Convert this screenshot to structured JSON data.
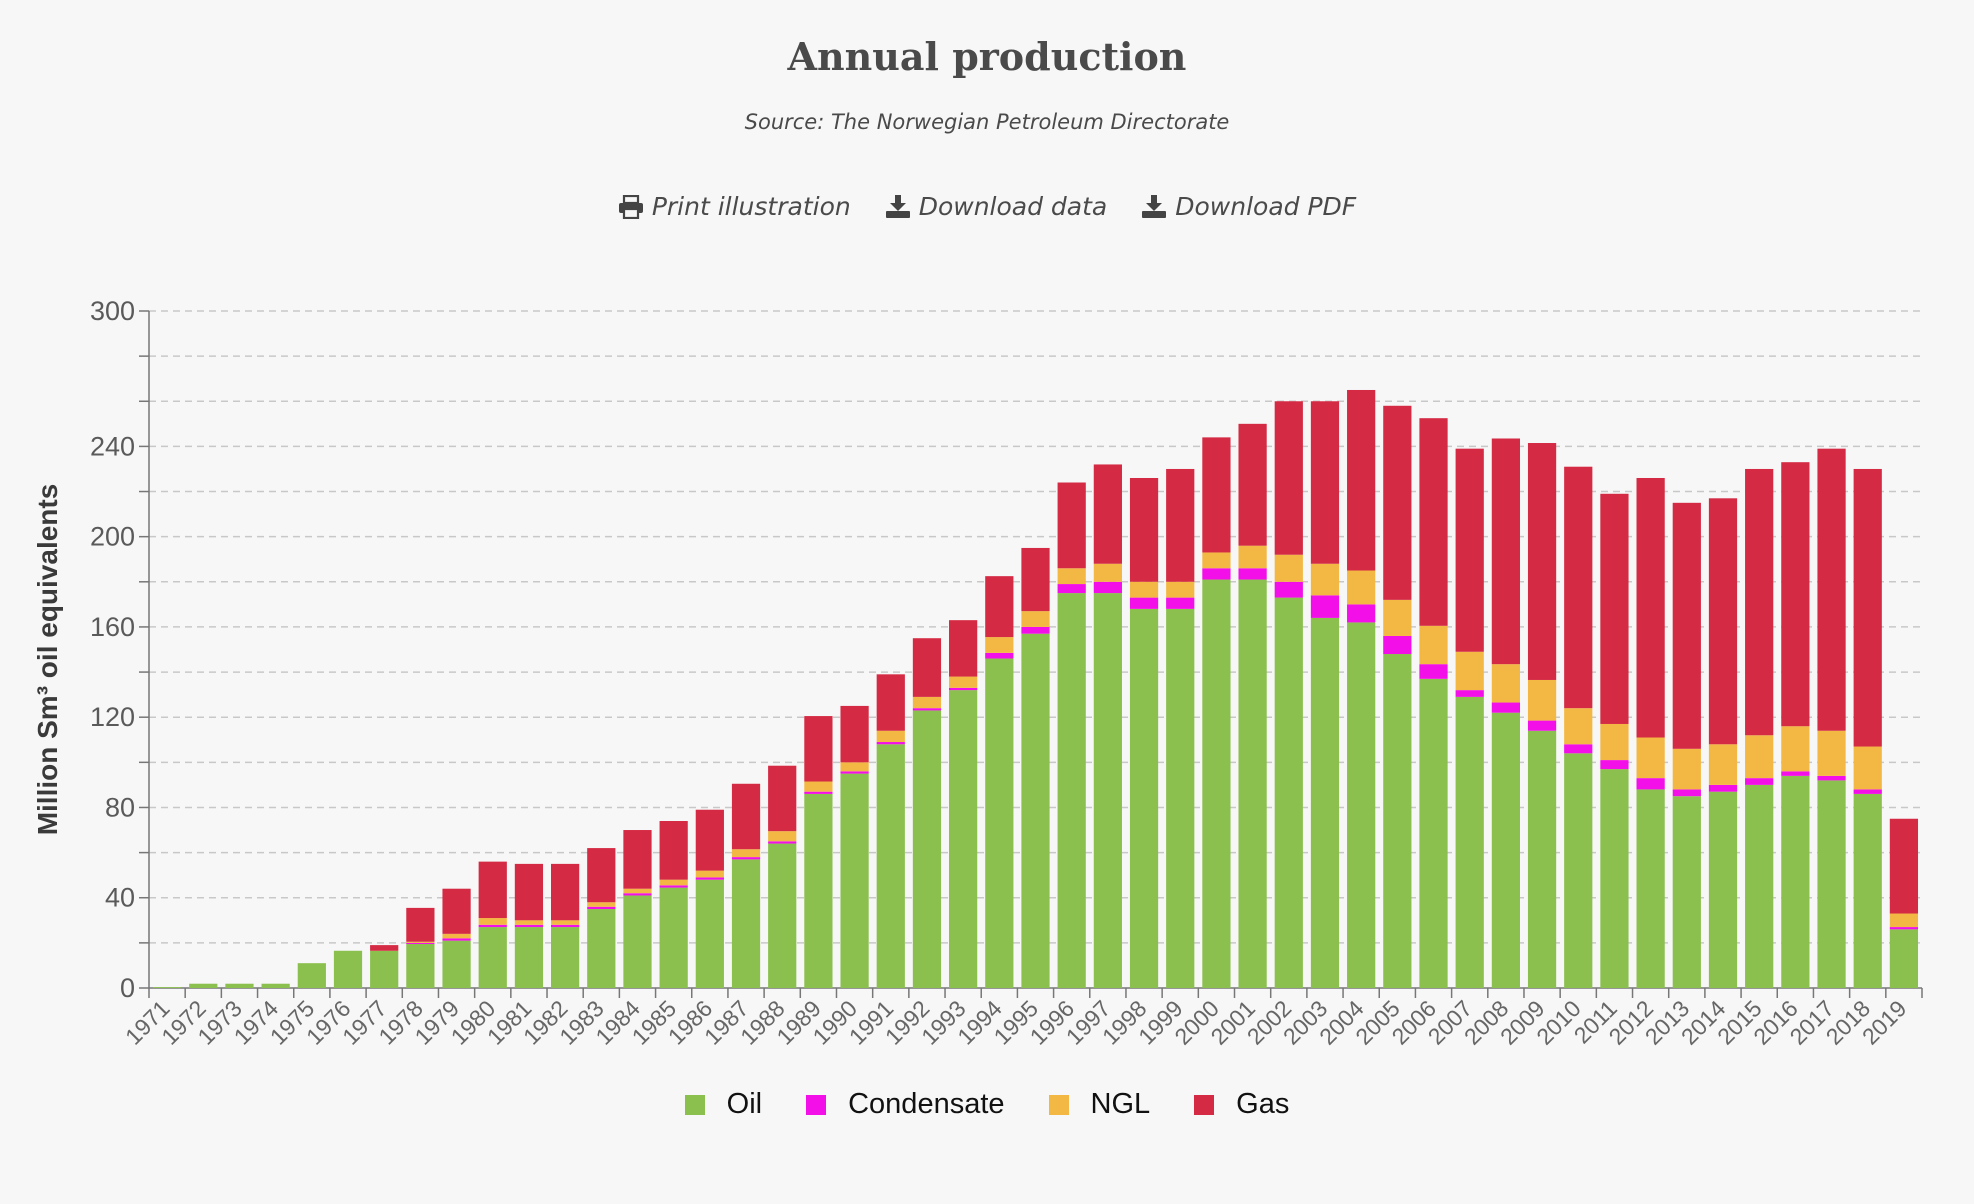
{
  "header": {
    "title": "Annual production",
    "subtitle": "Source: The Norwegian Petroleum Directorate"
  },
  "actions": {
    "print_label": "Print illustration",
    "download_data_label": "Download data",
    "download_pdf_label": "Download PDF"
  },
  "colors": {
    "oil": "#8bc04f",
    "condensate": "#f20fe8",
    "ngl": "#f3b844",
    "gas": "#d42a43",
    "grid": "#c8c8c8",
    "axis": "#777777",
    "text": "#4a4a4a"
  },
  "chart_data": {
    "type": "bar",
    "stacked": true,
    "title": "Annual production",
    "subtitle": "Source: The Norwegian Petroleum Directorate",
    "ylabel": "Million Sm³ oil equivalents",
    "xlabel": "",
    "ylim": [
      0,
      300
    ],
    "yticks": [
      0,
      40,
      80,
      120,
      160,
      200,
      240,
      300
    ],
    "grid": true,
    "legend_position": "bottom",
    "categories": [
      "1971",
      "1972",
      "1973",
      "1974",
      "1975",
      "1976",
      "1977",
      "1978",
      "1979",
      "1980",
      "1981",
      "1982",
      "1983",
      "1984",
      "1985",
      "1986",
      "1987",
      "1988",
      "1989",
      "1990",
      "1991",
      "1992",
      "1993",
      "1994",
      "1995",
      "1996",
      "1997",
      "1998",
      "1999",
      "2000",
      "2001",
      "2002",
      "2003",
      "2004",
      "2005",
      "2006",
      "2007",
      "2008",
      "2009",
      "2010",
      "2011",
      "2012",
      "2013",
      "2014",
      "2015",
      "2016",
      "2017",
      "2018",
      "2019"
    ],
    "series": [
      {
        "name": "Oil",
        "values": [
          0.4,
          1.9,
          1.9,
          1.9,
          11,
          16.5,
          16.5,
          19.5,
          21,
          27,
          27,
          27,
          35,
          41,
          44.5,
          48,
          57,
          64,
          86,
          95,
          108,
          123,
          132,
          146,
          157,
          175,
          175,
          168,
          168,
          181,
          181,
          173,
          164,
          162,
          148,
          137,
          129,
          122,
          114,
          104,
          97,
          88,
          85,
          87,
          90,
          94,
          92,
          86,
          26
        ]
      },
      {
        "name": "Condensate",
        "values": [
          0,
          0,
          0,
          0,
          0,
          0,
          0,
          0.5,
          1,
          1,
          1,
          1,
          1,
          1,
          1,
          1,
          1,
          1,
          1,
          1,
          1,
          1,
          1,
          2.5,
          3,
          4,
          5,
          5,
          5,
          5,
          5,
          7,
          10,
          8,
          8,
          6.5,
          3,
          4.5,
          4.5,
          4,
          4,
          5,
          3,
          3,
          3,
          2,
          2,
          2,
          1
        ]
      },
      {
        "name": "NGL",
        "values": [
          0,
          0,
          0,
          0,
          0,
          0,
          0,
          0.5,
          2,
          3,
          2,
          2,
          2,
          2,
          2.5,
          3,
          3.5,
          4.5,
          4.5,
          4,
          5,
          5,
          5,
          7,
          7,
          7,
          8,
          7,
          7,
          7,
          10,
          12,
          14,
          15,
          16,
          17,
          17,
          17,
          18,
          16,
          16,
          18,
          18,
          18,
          19,
          20,
          20,
          19,
          6
        ]
      },
      {
        "name": "Gas",
        "values": [
          0,
          0,
          0,
          0,
          0,
          0,
          2.5,
          15,
          20,
          25,
          25,
          25,
          24,
          26,
          26,
          27,
          29,
          29,
          29,
          25,
          25,
          26,
          25,
          27,
          28,
          38,
          44,
          46,
          50,
          51,
          54,
          68,
          72,
          80,
          86,
          92,
          90,
          100,
          105,
          107,
          102,
          115,
          109,
          109,
          118,
          117,
          125,
          123,
          42
        ]
      }
    ]
  }
}
